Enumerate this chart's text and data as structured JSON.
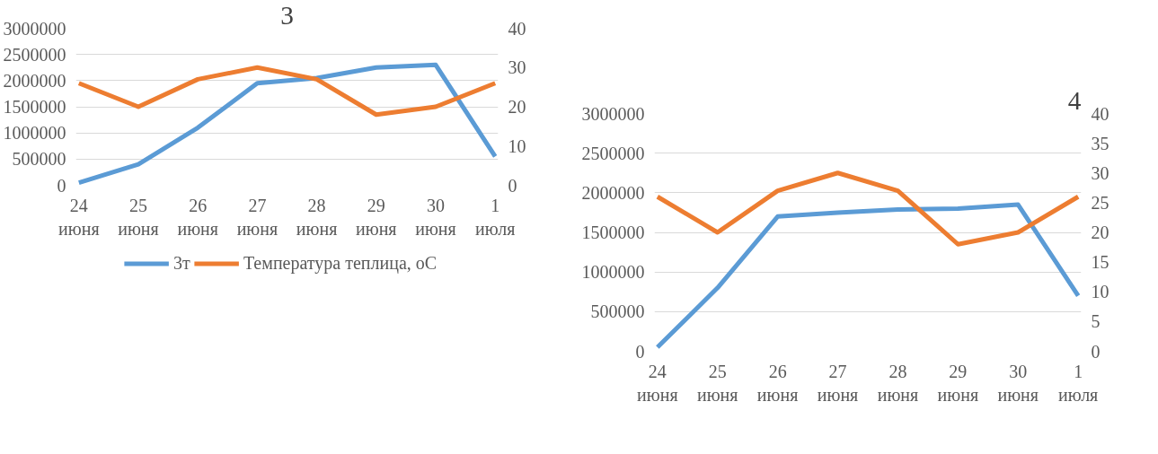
{
  "chart_data": [
    {
      "type": "line",
      "title": "3",
      "categories": [
        "24 июня",
        "25 июня",
        "26 июня",
        "27 июня",
        "28 июня",
        "29 июня",
        "30 июня",
        "1 июля"
      ],
      "series": [
        {
          "name": "3т",
          "color": "#5b9bd5",
          "values": [
            50000,
            400000,
            1100000,
            1950000,
            2050000,
            2250000,
            2300000,
            550000
          ]
        },
        {
          "name": "Температура теплица, оС",
          "color": "#ed7d31",
          "axis": "y2",
          "values": [
            26,
            20,
            27,
            30,
            27,
            18,
            20,
            26
          ]
        }
      ],
      "ylim": [
        0,
        3000000
      ],
      "yticks": [
        0,
        500000,
        1000000,
        1500000,
        2000000,
        2500000,
        3000000
      ],
      "y2lim": [
        0,
        40
      ],
      "y2ticks": [
        0,
        10,
        20,
        30,
        40
      ],
      "grid": "y",
      "legend": "bottom",
      "line_style": "solid"
    },
    {
      "type": "line",
      "title": "4",
      "categories": [
        "24 июня",
        "25 июня",
        "26 июня",
        "27 июня",
        "28 июня",
        "29 июня",
        "30 июня",
        "1 июля"
      ],
      "series": [
        {
          "color": "#5b9bd5",
          "values": [
            50000,
            800000,
            1700000,
            1750000,
            1790000,
            1800000,
            1850000,
            700000
          ]
        },
        {
          "color": "#ed7d31",
          "axis": "y2",
          "values": [
            26,
            20,
            27,
            30,
            27,
            18,
            20,
            26
          ]
        }
      ],
      "ylim": [
        0,
        3000000
      ],
      "yticks": [
        0,
        500000,
        1000000,
        1500000,
        2000000,
        2500000,
        3000000
      ],
      "y2lim": [
        0,
        40
      ],
      "y2ticks": [
        0,
        5,
        10,
        15,
        20,
        25,
        30,
        35,
        40
      ],
      "grid": "y",
      "legend": false,
      "line_style": "solid"
    }
  ]
}
